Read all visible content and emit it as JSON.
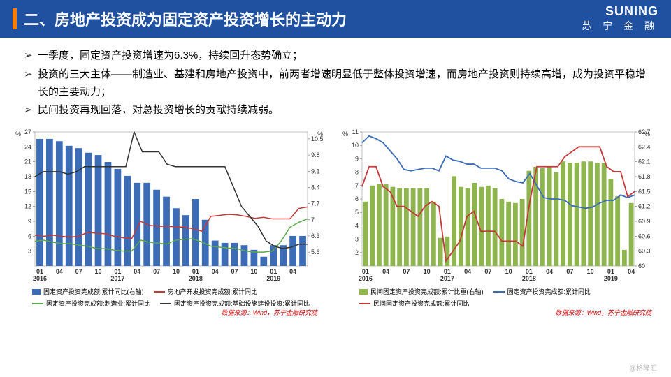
{
  "header": {
    "title": "二、房地产投资成为固定资产投资增长的主动力",
    "brand_en": "SUNING",
    "brand_cn": "苏 宁 金 融"
  },
  "bullets": [
    "一季度，固定资产投资增速为6.3%，持续回升态势确立；",
    "投资的三大主体——制造业、基建和房地产投资中，前两者增速明显低于整体投资增速，而房地产投资则持续高增，成为投资平稳增长的主要动力；",
    "民间投资再现回落，对总投资增长的贡献持续减弱。"
  ],
  "chart_left": {
    "title": "",
    "x_labels": [
      "01\n2016",
      "04",
      "07",
      "10",
      "01\n2017",
      "04",
      "07",
      "10",
      "01\n2018",
      "04",
      "07",
      "10",
      "01\n2019",
      "04"
    ],
    "y_left": {
      "min": 0,
      "max": 27,
      "ticks": [
        3,
        6,
        9,
        12,
        15,
        18,
        21,
        24,
        27
      ],
      "unit": "%"
    },
    "y_right": {
      "min": 5.0,
      "max": 10.8,
      "ticks": [
        5.6,
        6.3,
        7.0,
        7.7,
        8.4,
        9.1,
        9.8,
        10.5
      ],
      "unit": "%"
    },
    "bars": {
      "color": "#3b6cb5",
      "values": [
        10.5,
        10.5,
        10.2,
        10.1,
        9.2,
        8.6,
        8.3,
        7.2,
        7.9,
        7.0,
        6.0,
        5.9,
        6.3,
        6.3
      ],
      "values_all": [
        10.5,
        10.5,
        10.4,
        10.2,
        10.1,
        9.9,
        9.8,
        9.5,
        9.2,
        8.9,
        8.6,
        8.6,
        8.3,
        8.0,
        7.5,
        7.2,
        7.9,
        7.0,
        6.1,
        6.0,
        6.0,
        5.9,
        5.7,
        5.4,
        5.9,
        5.9,
        6.3,
        6.3
      ]
    },
    "lines": [
      {
        "name": "房地产开发投资完成额:累计同比",
        "color": "#c33a3a",
        "width": 1.5,
        "values": [
          6.2,
          6.0,
          6.2,
          6.0,
          5.8,
          6.0,
          6.8,
          6.6,
          6.5,
          6.0,
          5.7,
          5.5,
          9.0,
          8.2,
          8.0,
          8.0,
          7.9,
          7.8,
          7.5,
          7.0,
          10.0,
          10.2,
          10.4,
          10.3,
          10.0,
          9.6,
          9.8,
          9.5,
          9.5,
          9.5,
          11.6,
          11.9
        ]
      },
      {
        "name": "固定资产投资完成额:制造业:累计同比",
        "color": "#5aa84c",
        "width": 1.5,
        "values": [
          5.0,
          5.2,
          4.8,
          4.5,
          4.5,
          4.2,
          4.0,
          3.5,
          3.5,
          3.2,
          3.0,
          3.0,
          5.2,
          4.8,
          4.6,
          4.4,
          5.2,
          5.4,
          5.5,
          4.8,
          4.0,
          3.8,
          3.6,
          3.5,
          3.0,
          2.8,
          2.8,
          3.0,
          5.0,
          7.8,
          8.8,
          9.5
        ]
      },
      {
        "name": "固定资产投资完成额:基础设施建设投资:累计同比",
        "color": "#333333",
        "width": 1.5,
        "values": [
          18,
          19,
          19,
          19,
          18.5,
          19,
          20,
          20,
          20,
          20,
          20,
          20,
          27,
          23,
          23,
          23,
          20.5,
          20,
          20,
          20,
          20,
          20,
          20,
          20,
          16,
          12,
          10,
          8,
          5,
          4,
          3.5,
          3.8,
          4.4,
          4.4
        ]
      }
    ],
    "legend": [
      {
        "type": "box",
        "color": "#3b6cb5",
        "label": "固定资产投资完成额:累计同比(右轴)"
      },
      {
        "type": "line",
        "color": "#c33a3a",
        "label": "房地产开发投资完成额:累计同比"
      },
      {
        "type": "line",
        "color": "#5aa84c",
        "label": "固定资产投资完成额:制造业:累计同比"
      },
      {
        "type": "line",
        "color": "#333333",
        "label": "固定资产投资完成额:基础设施建设投资:累计同比"
      }
    ],
    "source": "数据来源：Wind，苏宁金融研究院"
  },
  "chart_right": {
    "x_labels": [
      "01\n2016",
      "04",
      "07",
      "10",
      "01\n2017",
      "04",
      "07",
      "10",
      "01\n2018",
      "04",
      "07",
      "10",
      "01\n2019",
      "04"
    ],
    "y_left": {
      "min": 1,
      "max": 11,
      "ticks": [
        2,
        3,
        4,
        5,
        6,
        7,
        8,
        9,
        10,
        11
      ],
      "unit": "%"
    },
    "y_right": {
      "min": 60.0,
      "max": 62.7,
      "ticks": [
        60.0,
        60.3,
        60.6,
        60.9,
        61.2,
        61.5,
        61.8,
        62.1,
        62.4,
        62.7
      ],
      "unit": "%"
    },
    "bars": {
      "color": "#8fb64e",
      "values_all": [
        5.8,
        7.0,
        7.1,
        7.1,
        6.9,
        6.8,
        6.8,
        6.8,
        6.8,
        6.8,
        5.8,
        3.1,
        3.2,
        7.7,
        6.9,
        6.8,
        7.2,
        6.9,
        7.0,
        6.8,
        6.0,
        5.8,
        5.7,
        6.0,
        8.1,
        8.4,
        8.3,
        8.4,
        8.0,
        8.8,
        8.7,
        8.7,
        8.8,
        8.8,
        8.7,
        8.7,
        7.5,
        6.2,
        2.2,
        5.7
      ]
    },
    "lines": [
      {
        "name": "固定资产投资完成额:累计同比",
        "color": "#3b6cb5",
        "width": 1.8,
        "values": [
          10.2,
          10.7,
          10.5,
          10.2,
          9.6,
          9.0,
          8.2,
          8.1,
          8.2,
          8.3,
          8.3,
          8.1,
          9.2,
          8.9,
          8.8,
          8.6,
          8.6,
          8.3,
          8.3,
          8.3,
          8.1,
          7.5,
          7.3,
          7.2,
          7.9,
          7.0,
          6.1,
          6.0,
          6.0,
          5.9,
          5.5,
          5.4,
          5.3,
          5.4,
          5.7,
          5.9,
          5.9,
          6.3,
          6.1,
          6.3
        ]
      },
      {
        "name": "民间固定资产投资完成额:累计比重(右轴)",
        "color": "#c33a3a",
        "width": 1.8,
        "values": [
          61.6,
          62.0,
          62.0,
          61.6,
          61.5,
          61.2,
          61.2,
          61.1,
          61.0,
          61.2,
          61.3,
          61.2,
          60.1,
          60.3,
          60.5,
          61.0,
          61.1,
          60.7,
          60.7,
          60.7,
          60.5,
          60.5,
          60.5,
          60.4,
          61.3,
          62.0,
          62.0,
          62.0,
          62.0,
          62.2,
          62.3,
          62.4,
          62.4,
          62.4,
          62.4,
          62.0,
          61.9,
          61.9,
          61.4,
          61.5
        ]
      }
    ],
    "legend": [
      {
        "type": "box",
        "color": "#8fb64e",
        "label": "民间固定资产投资完成额:累计比重(右轴)"
      },
      {
        "type": "line",
        "color": "#3b6cb5",
        "label": "固定资产投资完成额:累计同比"
      },
      {
        "type": "line",
        "color": "#c33a3a",
        "label": "民间固定资产投资完成额:累计同比"
      }
    ],
    "source": "数据来源：Wind，苏宁金融研究院"
  },
  "watermark": "@格隆汇"
}
